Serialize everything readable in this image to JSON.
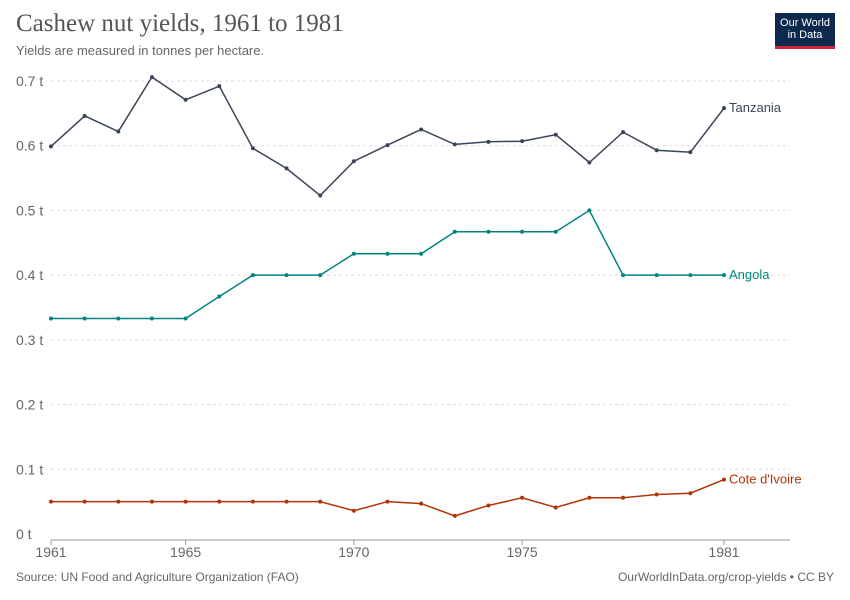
{
  "header": {
    "title": "Cashew nut yields, 1961 to 1981",
    "subtitle": "Yields are measured in tonnes per hectare."
  },
  "logo": {
    "line1": "Our World",
    "line2": "in Data"
  },
  "footer": {
    "source": "Source: UN Food and Agriculture Organization (FAO)",
    "link": "OurWorldInData.org/crop-yields • CC BY"
  },
  "chart_data": {
    "type": "line",
    "title": "Cashew nut yields, 1961 to 1981",
    "subtitle": "Yields are measured in tonnes per hectare.",
    "xlim": [
      1961,
      1981
    ],
    "ylim": [
      0,
      0.7
    ],
    "x_ticks": [
      1961,
      1965,
      1970,
      1975,
      1981
    ],
    "y_ticks": [
      0,
      0.1,
      0.2,
      0.3,
      0.4,
      0.5,
      0.6,
      0.7
    ],
    "y_tick_labels": [
      "0 t",
      "0.1 t",
      "0.2 t",
      "0.3 t",
      "0.4 t",
      "0.5 t",
      "0.6 t",
      "0.7 t"
    ],
    "grid": "horizontal dashed",
    "legend": "inline labels at line ends",
    "x": [
      1961,
      1962,
      1963,
      1964,
      1965,
      1966,
      1967,
      1968,
      1969,
      1970,
      1971,
      1972,
      1973,
      1974,
      1975,
      1976,
      1977,
      1978,
      1979,
      1980,
      1981
    ],
    "series": [
      {
        "name": "Tanzania",
        "color": "#3a4558",
        "values": [
          0.599,
          0.646,
          0.622,
          0.706,
          0.671,
          0.692,
          0.596,
          0.565,
          0.523,
          0.576,
          0.601,
          0.625,
          0.602,
          0.606,
          0.607,
          0.617,
          0.574,
          0.621,
          0.593,
          0.59,
          0.658
        ]
      },
      {
        "name": "Angola",
        "color": "#00847e",
        "values": [
          0.333,
          0.333,
          0.333,
          0.333,
          0.333,
          0.367,
          0.4,
          0.4,
          0.4,
          0.433,
          0.433,
          0.433,
          0.467,
          0.467,
          0.467,
          0.467,
          0.5,
          0.4,
          0.4,
          0.4,
          0.4
        ]
      },
      {
        "name": "Cote d'Ivoire",
        "color": "#b13507",
        "values": [
          0.05,
          0.05,
          0.05,
          0.05,
          0.05,
          0.05,
          0.05,
          0.05,
          0.05,
          0.036,
          0.05,
          0.047,
          0.028,
          0.044,
          0.056,
          0.041,
          0.056,
          0.056,
          0.061,
          0.063,
          0.084
        ]
      }
    ]
  }
}
